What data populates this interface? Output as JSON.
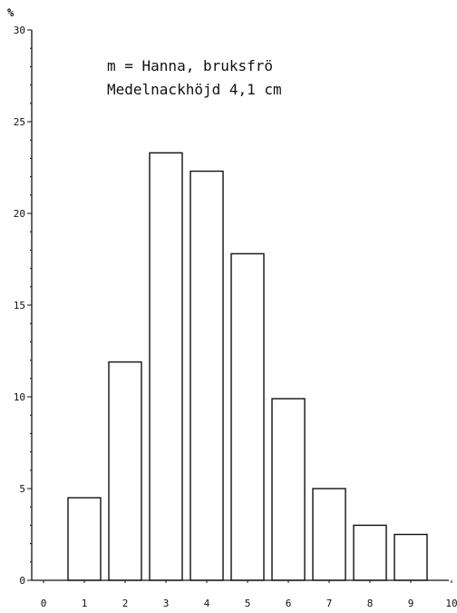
{
  "chart_data": {
    "type": "bar",
    "title_lines": [
      "m = Hanna, bruksfrö",
      "Medelnackhöjd 4,1 cm"
    ],
    "y_unit": "%",
    "ylim": [
      0,
      30
    ],
    "xlim": [
      0,
      10
    ],
    "y_ticks": [
      0,
      5,
      10,
      15,
      20,
      25,
      30
    ],
    "x_ticks": [
      0,
      1,
      2,
      3,
      4,
      5,
      6,
      7,
      8,
      9,
      10
    ],
    "x_tick_labels": [
      "0",
      "1",
      "2",
      "3",
      "4",
      "5",
      "6",
      "7",
      "8",
      "9",
      "10"
    ],
    "y_tick_labels": [
      "0",
      "5",
      "10",
      "15",
      "20",
      "25",
      "30"
    ],
    "categories": [
      "1",
      "2",
      "3",
      "4",
      "5",
      "6",
      "7",
      "8",
      "9"
    ],
    "x": [
      1,
      2,
      3,
      4,
      5,
      6,
      7,
      8,
      9
    ],
    "values": [
      4.5,
      11.9,
      23.3,
      22.3,
      17.8,
      9.9,
      5.0,
      3.0,
      2.5
    ],
    "grid": false,
    "legend": "none"
  }
}
